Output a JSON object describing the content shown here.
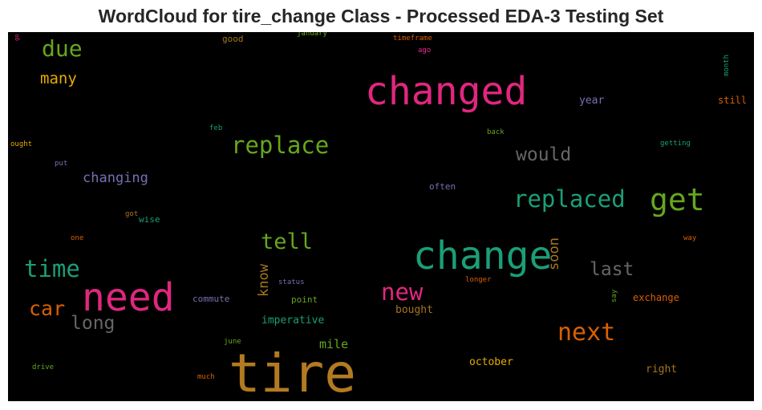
{
  "title": "WordCloud for tire_change Class - Processed EDA-3 Testing Set",
  "colors": {
    "background": "#000000",
    "page": "#ffffff"
  },
  "words": [
    {
      "text": "tire",
      "color": "#b37a22"
    },
    {
      "text": "changed",
      "color": "#e0277f"
    },
    {
      "text": "change",
      "color": "#1b9e77"
    },
    {
      "text": "need",
      "color": "#e0277f"
    },
    {
      "text": "get",
      "color": "#66a61e"
    },
    {
      "text": "replace",
      "color": "#66a61e"
    },
    {
      "text": "replaced",
      "color": "#1b9e77"
    },
    {
      "text": "next",
      "color": "#d95f02"
    },
    {
      "text": "time",
      "color": "#1b9e77"
    },
    {
      "text": "new",
      "color": "#e0277f"
    },
    {
      "text": "due",
      "color": "#66a61e"
    },
    {
      "text": "tell",
      "color": "#66a61e"
    },
    {
      "text": "car",
      "color": "#d95f02"
    },
    {
      "text": "would",
      "color": "#666666"
    },
    {
      "text": "last",
      "color": "#666666"
    },
    {
      "text": "long",
      "color": "#666666"
    },
    {
      "text": "many",
      "color": "#e6ab02"
    },
    {
      "text": "changing",
      "color": "#7570b3"
    },
    {
      "text": "know",
      "color": "#a6761d"
    },
    {
      "text": "soon",
      "color": "#a6761d"
    },
    {
      "text": "mile",
      "color": "#66a61e"
    },
    {
      "text": "october",
      "color": "#e6ab02"
    },
    {
      "text": "right",
      "color": "#a6761d"
    },
    {
      "text": "imperative",
      "color": "#1b9e77"
    },
    {
      "text": "bought",
      "color": "#a6761d"
    },
    {
      "text": "year",
      "color": "#7570b3"
    },
    {
      "text": "still",
      "color": "#d95f02"
    },
    {
      "text": "exchange",
      "color": "#d95f02"
    },
    {
      "text": "commute",
      "color": "#7570b3"
    },
    {
      "text": "point",
      "color": "#66a61e"
    },
    {
      "text": "wise",
      "color": "#1b9e77"
    },
    {
      "text": "often",
      "color": "#7570b3"
    },
    {
      "text": "good",
      "color": "#a6761d"
    },
    {
      "text": "january",
      "color": "#66a61e"
    },
    {
      "text": "timeframe",
      "color": "#d95f02"
    },
    {
      "text": "ago",
      "color": "#e7298a"
    },
    {
      "text": "month",
      "color": "#1b9e77"
    },
    {
      "text": "back",
      "color": "#66a61e"
    },
    {
      "text": "getting",
      "color": "#1b9e77"
    },
    {
      "text": "feb",
      "color": "#1b9e77"
    },
    {
      "text": "ought",
      "color": "#e6ab02"
    },
    {
      "text": "put",
      "color": "#7570b3"
    },
    {
      "text": "got",
      "color": "#a6761d"
    },
    {
      "text": "one",
      "color": "#d95f02"
    },
    {
      "text": "way",
      "color": "#d95f02"
    },
    {
      "text": "status",
      "color": "#7570b3"
    },
    {
      "text": "longer",
      "color": "#d95f02"
    },
    {
      "text": "say",
      "color": "#66a61e"
    },
    {
      "text": "june",
      "color": "#66a61e"
    },
    {
      "text": "much",
      "color": "#d95f02"
    },
    {
      "text": "drive",
      "color": "#66a61e"
    },
    {
      "text": "go",
      "color": "#e7298a"
    }
  ]
}
